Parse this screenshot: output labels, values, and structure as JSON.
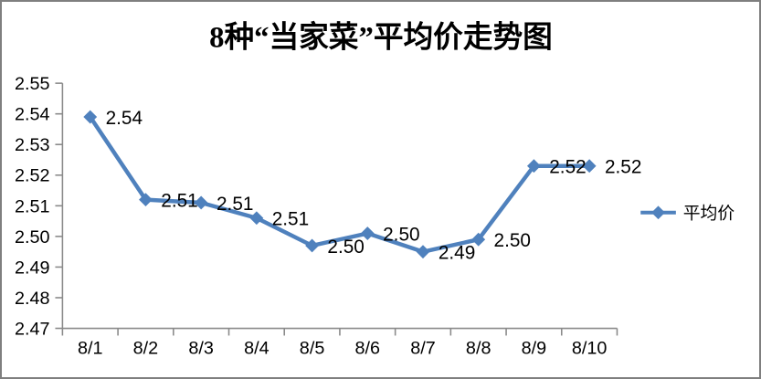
{
  "chart_data": {
    "type": "line",
    "title": "8种“当家菜”平均价走势图",
    "categories": [
      "8/1",
      "8/2",
      "8/3",
      "8/4",
      "8/5",
      "8/6",
      "8/7",
      "8/8",
      "8/9",
      "8/10"
    ],
    "series": [
      {
        "name": "平均价",
        "values": [
          2.539,
          2.512,
          2.511,
          2.506,
          2.497,
          2.501,
          2.495,
          2.499,
          2.523,
          2.523
        ],
        "point_labels": [
          "2.54",
          "2.51",
          "2.51",
          "2.51",
          "2.50",
          "2.50",
          "2.49",
          "2.50",
          "2.52",
          "2.52"
        ]
      }
    ],
    "xlabel": "",
    "ylabel": "",
    "ylim": [
      2.47,
      2.55
    ],
    "ytick_step": 0.01,
    "ytick_labels": [
      "2.55",
      "2.54",
      "2.53",
      "2.52",
      "2.51",
      "2.50",
      "2.49",
      "2.48",
      "2.47"
    ],
    "grid": false,
    "marker": "diamond",
    "legend_position": "right"
  },
  "colors": {
    "series": "#4F81BD",
    "axis": "#8A8A8A",
    "frame_border": "#7F7F7F",
    "text": "#000000",
    "background": "#FFFFFF"
  }
}
